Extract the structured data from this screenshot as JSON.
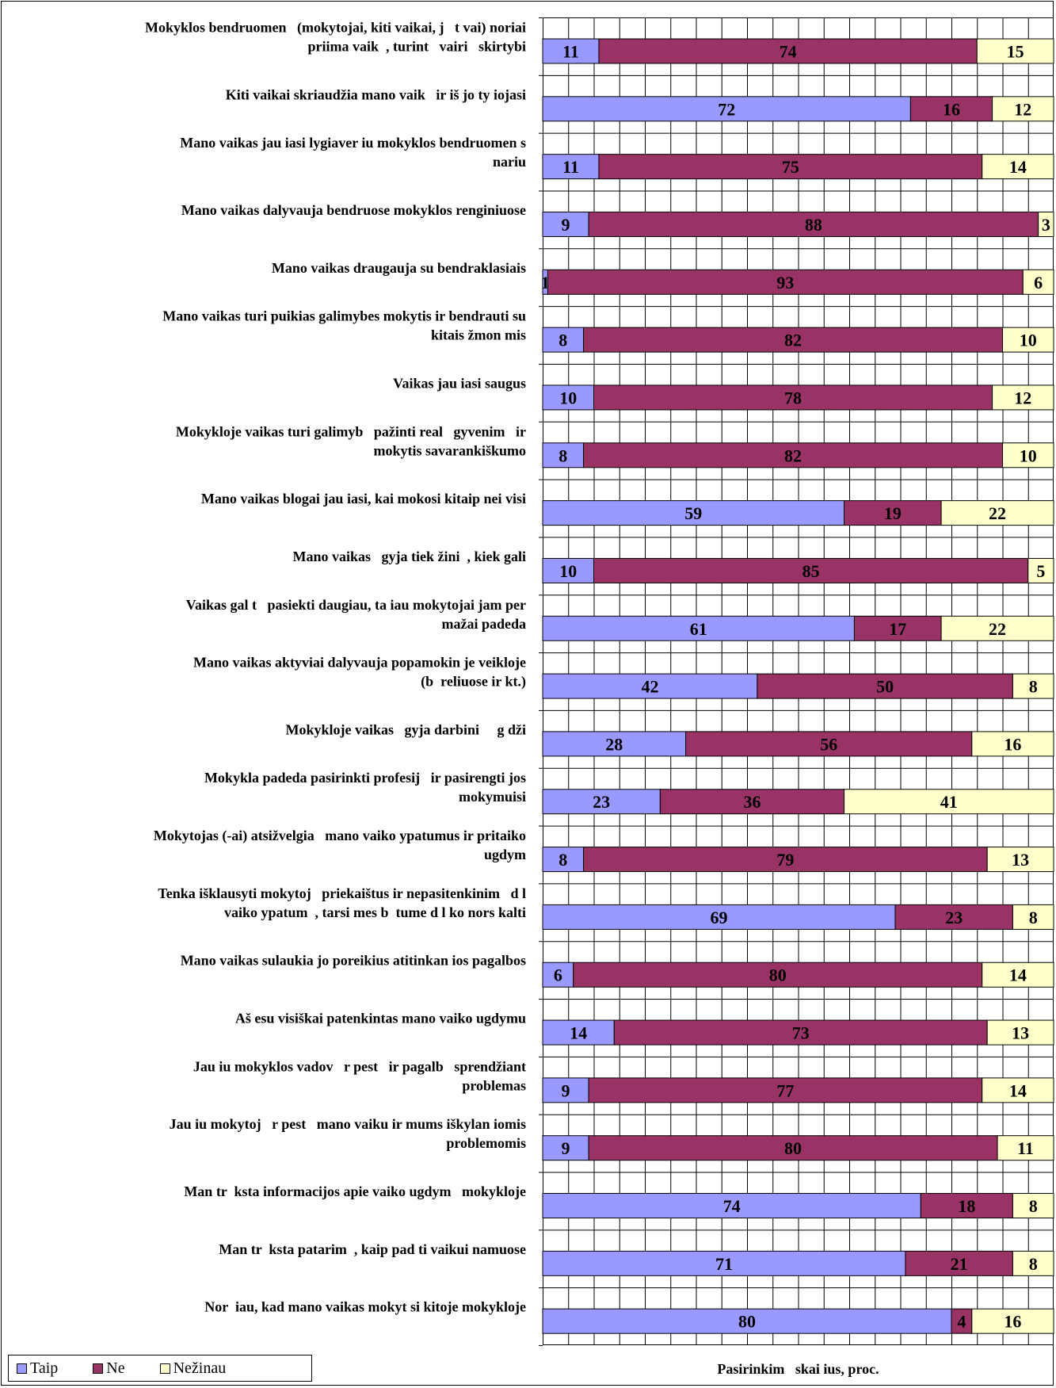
{
  "chart_data": {
    "type": "bar",
    "orientation": "horizontal",
    "stacked": true,
    "categories": [
      "Mokyklos bendruomen (mokytojai, kiti vaikai, j t vai) noriai priima vaik , turint vairi skirtybi",
      "Kiti vaikai skriaudžia mano vaik ir iš jo ty iojasi",
      "Mano vaikas jau iasi lygiaver iu mokyklos bendruomen s nariu",
      "Mano vaikas dalyvauja bendruose mokyklos renginiuose",
      "Mano vaikas draugauja su bendraklasiais",
      "Mano vaikas turi puikias galimybes mokytis ir bendrauti su kitais žmon mis",
      "Vaikas jau iasi saugus",
      "Mokykloje vaikas turi galimyb pažinti real gyvenim ir mokytis savarankiškumo",
      "Mano vaikas blogai jau iasi, kai mokosi kitaip nei visi",
      "Mano vaikas gyja tiek žini , kiek gali",
      "Vaikas gal t pasiekti daugiau, ta iau mokytojai jam per mažai padeda",
      "Mano vaikas aktyviai dalyvauja popamokin je veikloje (b reliuose ir kt.)",
      "Mokykloje vaikas gyja darbini g dži",
      "Mokykla padeda pasirinkti profesij ir pasirengti jos mokymuisi",
      "Mokytojas (-ai) atsižvelgia mano vaiko ypatumus ir pritaiko ugdym",
      "Tenka išklausyti mokytoj priekaištus ir nepasitenkinim d l vaiko ypatum , tarsi mes b tume d l ko nors kalti",
      "Mano vaikas sulaukia jo poreikius atitinkan ios pagalbos",
      "Aš esu visiškai patenkintas mano vaiko ugdymu",
      "Jau iu mokyklos vadov r pest ir pagalb sprendžiant problemas",
      "Jau iu mokytoj r pest mano vaiku ir mums iškylan iomis problemomis",
      "Man tr ksta informacijos apie vaiko ugdym mokykloje",
      "Man tr ksta patarim , kaip pad ti vaikui namuose",
      "Nor iau, kad mano vaikas mokyt si kitoje mokykloje"
    ],
    "category_lines": [
      [
        "Mokyklos bendruomen   (mokytojai, kiti vaikai, j   t vai) noriai",
        "priima vaik  , turint   vairi   skirtybi"
      ],
      [
        "Kiti vaikai skriaudžia mano vaik   ir iš jo ty iojasi"
      ],
      [
        "Mano vaikas jau iasi lygiaver iu mokyklos bendruomen s",
        "nariu"
      ],
      [
        "Mano vaikas dalyvauja bendruose mokyklos renginiuose"
      ],
      [
        "Mano vaikas draugauja su bendraklasiais"
      ],
      [
        "Mano vaikas turi puikias galimybes mokytis ir bendrauti su",
        "kitais žmon mis"
      ],
      [
        "Vaikas jau iasi saugus"
      ],
      [
        "Mokykloje vaikas turi galimyb   pažinti real   gyvenim   ir",
        "mokytis savarankiškumo"
      ],
      [
        "Mano vaikas blogai jau iasi, kai mokosi kitaip nei visi"
      ],
      [
        "Mano vaikas   gyja tiek žini  , kiek gali"
      ],
      [
        "Vaikas gal t   pasiekti daugiau, ta iau mokytojai jam per",
        "mažai padeda"
      ],
      [
        "Mano vaikas aktyviai dalyvauja popamokin je veikloje",
        "(b  reliuose ir kt.)"
      ],
      [
        "Mokykloje vaikas   gyja darbini     g dži"
      ],
      [
        "Mokykla padeda pasirinkti profesij   ir pasirengti jos",
        "mokymuisi"
      ],
      [
        "Mokytojas (-ai) atsižvelgia   mano vaiko ypatumus ir pritaiko",
        "ugdym"
      ],
      [
        "Tenka išklausyti mokytoj   priekaištus ir nepasitenkinim   d l",
        "vaiko ypatum  , tarsi mes b  tume d l ko nors kalti"
      ],
      [
        "Mano vaikas sulaukia jo poreikius atitinkan ios pagalbos"
      ],
      [
        "Aš esu visiškai patenkintas mano vaiko ugdymu"
      ],
      [
        "Jau iu mokyklos vadov   r pest   ir pagalb   sprendžiant",
        "problemas"
      ],
      [
        "Jau iu mokytoj   r pest   mano vaiku ir mums iškylan iomis",
        "problemomis"
      ],
      [
        "Man tr  ksta informacijos apie vaiko ugdym   mokykloje"
      ],
      [
        "Man tr  ksta patarim  , kaip pad ti vaikui namuose"
      ],
      [
        "Nor  iau, kad mano vaikas mokyt si kitoje mokykloje"
      ]
    ],
    "series": [
      {
        "name": "Taip",
        "color": "#9999ff",
        "values": [
          11,
          72,
          11,
          9,
          1,
          8,
          10,
          8,
          59,
          10,
          61,
          42,
          28,
          23,
          8,
          69,
          6,
          14,
          9,
          9,
          74,
          71,
          80
        ]
      },
      {
        "name": "Ne",
        "color": "#993366",
        "values": [
          74,
          16,
          75,
          88,
          93,
          82,
          78,
          82,
          19,
          85,
          17,
          50,
          56,
          36,
          79,
          23,
          80,
          73,
          77,
          80,
          18,
          21,
          4
        ]
      },
      {
        "name": "Nežinau",
        "color": "#ffffcc",
        "values": [
          15,
          12,
          14,
          3,
          6,
          10,
          12,
          10,
          22,
          5,
          22,
          8,
          16,
          41,
          13,
          8,
          14,
          13,
          14,
          11,
          8,
          8,
          16
        ]
      }
    ],
    "xlabel": "Pasirinkim skai ius, proc.",
    "xlabel_text": "Pasirinkim   skai ius, proc.",
    "xlim": [
      0,
      100
    ],
    "grid": true,
    "legend_position": "bottom-left"
  }
}
